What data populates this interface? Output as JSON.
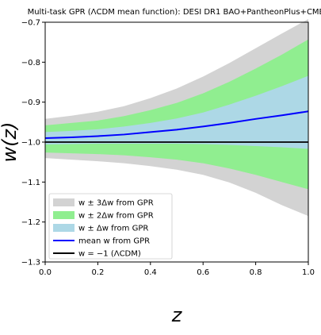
{
  "chart_data": {
    "type": "area",
    "title": "Multi-task GPR (ΛCDM mean function): DESI DR1 BAO+PantheonPlus+CMB",
    "xlabel": "z",
    "ylabel": "w(z)",
    "xlim": [
      0.0,
      1.0
    ],
    "ylim": [
      -1.3,
      -0.7
    ],
    "x_ticks": [
      "0.0",
      "0.2",
      "0.4",
      "0.6",
      "0.8",
      "1.0"
    ],
    "y_ticks": [
      "−0.7",
      "−0.8",
      "−0.9",
      "−1.0",
      "−1.1",
      "−1.2",
      "−1.3"
    ],
    "grid": false,
    "legend_position": "lower-left",
    "x": [
      0.0,
      0.1,
      0.2,
      0.3,
      0.4,
      0.5,
      0.6,
      0.7,
      0.8,
      0.9,
      1.0
    ],
    "series": [
      {
        "name": "w ± 3Δw from GPR",
        "color": "#d3d3d3",
        "upper": [
          -0.942,
          -0.934,
          -0.924,
          -0.91,
          -0.89,
          -0.866,
          -0.836,
          -0.802,
          -0.765,
          -0.728,
          -0.692
        ],
        "lower": [
          -1.04,
          -1.044,
          -1.048,
          -1.053,
          -1.06,
          -1.069,
          -1.082,
          -1.101,
          -1.127,
          -1.158,
          -1.185
        ]
      },
      {
        "name": "w ± 2Δw from GPR",
        "color": "#90ee90",
        "upper": [
          -0.958,
          -0.952,
          -0.946,
          -0.935,
          -0.92,
          -0.902,
          -0.878,
          -0.849,
          -0.816,
          -0.781,
          -0.743
        ]
      },
      {
        "name": "w ± Δw from GPR",
        "color": "#add8e6",
        "upper": [
          -0.975,
          -0.972,
          -0.968,
          -0.961,
          -0.952,
          -0.941,
          -0.926,
          -0.906,
          -0.884,
          -0.86,
          -0.834
        ],
        "lower": [
          -1.006,
          -1.005,
          -1.004,
          -1.004,
          -1.004,
          -1.004,
          -1.005,
          -1.007,
          -1.01,
          -1.013,
          -1.017
        ]
      },
      {
        "name": "mean w from GPR",
        "color": "#0000ff",
        "values": [
          -0.99,
          -0.988,
          -0.985,
          -0.981,
          -0.975,
          -0.969,
          -0.961,
          -0.952,
          -0.942,
          -0.933,
          -0.923
        ]
      },
      {
        "name": "w = −1 (ΛCDM)",
        "color": "#000000",
        "values": [
          -1.0,
          -1.0,
          -1.0,
          -1.0,
          -1.0,
          -1.0,
          -1.0,
          -1.0,
          -1.0,
          -1.0,
          -1.0
        ]
      }
    ]
  }
}
